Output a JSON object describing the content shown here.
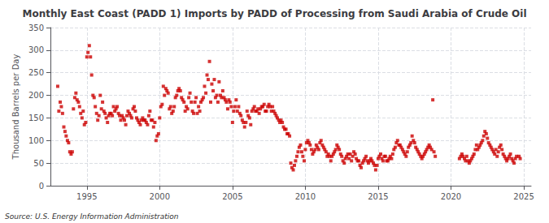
{
  "chart_data": {
    "type": "scatter",
    "title": "Monthly East Coast (PADD 1) Imports by PADD of Processing from Saudi Arabia of Crude Oil",
    "ylabel": "Thousand Barrels per Day",
    "source": "Source: U.S. Energy Information Administration",
    "color": "#cc0000",
    "marker": "square",
    "grid": true,
    "xlim": [
      1992.5,
      2025.5
    ],
    "ylim": [
      0,
      350
    ],
    "xticks": [
      1995,
      2000,
      2005,
      2010,
      2015,
      2020,
      2025
    ],
    "yticks": [
      0,
      50,
      100,
      150,
      200,
      250,
      300,
      350
    ],
    "x": [
      1993.0,
      1993.08,
      1993.17,
      1993.25,
      1993.33,
      1993.42,
      1993.5,
      1993.58,
      1993.67,
      1993.75,
      1993.83,
      1993.92,
      1994.0,
      1994.08,
      1994.17,
      1994.25,
      1994.33,
      1994.42,
      1994.5,
      1994.58,
      1994.67,
      1994.75,
      1994.83,
      1994.92,
      1995.0,
      1995.08,
      1995.17,
      1995.25,
      1995.33,
      1995.42,
      1995.5,
      1995.58,
      1995.67,
      1995.75,
      1995.83,
      1995.92,
      1996.0,
      1996.08,
      1996.17,
      1996.25,
      1996.33,
      1996.42,
      1996.5,
      1996.58,
      1996.67,
      1996.75,
      1996.83,
      1996.92,
      1997.0,
      1997.08,
      1997.17,
      1997.25,
      1997.33,
      1997.42,
      1997.5,
      1997.58,
      1997.67,
      1997.75,
      1997.83,
      1997.92,
      1998.0,
      1998.08,
      1998.17,
      1998.25,
      1998.33,
      1998.42,
      1998.5,
      1998.58,
      1998.67,
      1998.75,
      1998.83,
      1998.92,
      1999.0,
      1999.08,
      1999.17,
      1999.25,
      1999.33,
      1999.42,
      1999.5,
      1999.58,
      1999.67,
      1999.75,
      1999.83,
      1999.92,
      2000.0,
      2000.08,
      2000.17,
      2000.25,
      2000.33,
      2000.42,
      2000.5,
      2000.58,
      2000.67,
      2000.75,
      2000.83,
      2000.92,
      2001.0,
      2001.08,
      2001.17,
      2001.25,
      2001.33,
      2001.42,
      2001.5,
      2001.58,
      2001.67,
      2001.75,
      2001.83,
      2001.92,
      2002.0,
      2002.08,
      2002.17,
      2002.25,
      2002.33,
      2002.42,
      2002.5,
      2002.58,
      2002.67,
      2002.75,
      2002.83,
      2002.92,
      2003.0,
      2003.08,
      2003.17,
      2003.25,
      2003.33,
      2003.42,
      2003.5,
      2003.58,
      2003.67,
      2003.75,
      2003.83,
      2003.92,
      2004.0,
      2004.08,
      2004.17,
      2004.25,
      2004.33,
      2004.42,
      2004.5,
      2004.58,
      2004.67,
      2004.75,
      2004.83,
      2004.92,
      2005.0,
      2005.08,
      2005.17,
      2005.25,
      2005.33,
      2005.42,
      2005.5,
      2005.58,
      2005.67,
      2005.75,
      2005.83,
      2005.92,
      2006.0,
      2006.08,
      2006.17,
      2006.25,
      2006.33,
      2006.42,
      2006.5,
      2006.58,
      2006.67,
      2006.75,
      2006.83,
      2006.92,
      2007.0,
      2007.08,
      2007.17,
      2007.25,
      2007.33,
      2007.42,
      2007.5,
      2007.58,
      2007.67,
      2007.75,
      2007.83,
      2007.92,
      2008.0,
      2008.08,
      2008.17,
      2008.25,
      2008.33,
      2008.42,
      2008.5,
      2008.58,
      2008.67,
      2008.75,
      2008.83,
      2008.92,
      2009.0,
      2009.08,
      2009.17,
      2009.25,
      2009.33,
      2009.42,
      2009.5,
      2009.58,
      2009.67,
      2009.75,
      2009.83,
      2009.92,
      2010.0,
      2010.08,
      2010.17,
      2010.25,
      2010.33,
      2010.42,
      2010.5,
      2010.58,
      2010.67,
      2010.75,
      2010.83,
      2010.92,
      2011.0,
      2011.08,
      2011.17,
      2011.25,
      2011.33,
      2011.42,
      2011.5,
      2011.58,
      2011.67,
      2011.75,
      2011.83,
      2011.92,
      2012.0,
      2012.08,
      2012.17,
      2012.25,
      2012.33,
      2012.42,
      2012.5,
      2012.58,
      2012.67,
      2012.75,
      2012.83,
      2012.92,
      2013.0,
      2013.08,
      2013.17,
      2013.25,
      2013.33,
      2013.42,
      2013.5,
      2013.58,
      2013.67,
      2013.75,
      2013.83,
      2013.92,
      2014.0,
      2014.08,
      2014.17,
      2014.25,
      2014.33,
      2014.42,
      2014.5,
      2014.58,
      2014.67,
      2014.75,
      2014.83,
      2014.92,
      2015.0,
      2015.08,
      2015.17,
      2015.25,
      2015.33,
      2015.42,
      2015.5,
      2015.58,
      2015.67,
      2015.75,
      2015.83,
      2015.92,
      2016.0,
      2016.08,
      2016.17,
      2016.25,
      2016.33,
      2016.42,
      2016.5,
      2016.58,
      2016.67,
      2016.75,
      2016.83,
      2016.92,
      2017.0,
      2017.08,
      2017.17,
      2017.25,
      2017.33,
      2017.42,
      2017.5,
      2017.58,
      2017.67,
      2017.75,
      2017.83,
      2017.92,
      2018.0,
      2018.08,
      2018.17,
      2018.25,
      2018.33,
      2018.42,
      2018.5,
      2018.58,
      2018.67,
      2018.75,
      2018.83,
      2018.92,
      2020.58,
      2020.67,
      2020.75,
      2020.83,
      2020.92,
      2021.0,
      2021.08,
      2021.17,
      2021.25,
      2021.33,
      2021.42,
      2021.5,
      2021.58,
      2021.67,
      2021.75,
      2021.83,
      2021.92,
      2022.0,
      2022.08,
      2022.17,
      2022.25,
      2022.33,
      2022.42,
      2022.5,
      2022.58,
      2022.67,
      2022.75,
      2022.83,
      2022.92,
      2023.0,
      2023.08,
      2023.17,
      2023.25,
      2023.33,
      2023.42,
      2023.5,
      2023.58,
      2023.67,
      2023.75,
      2023.83,
      2023.92,
      2024.0,
      2024.08,
      2024.17,
      2024.25,
      2024.33,
      2024.42,
      2024.5,
      2024.67,
      2024.75
    ],
    "values": [
      220,
      165,
      185,
      175,
      160,
      130,
      120,
      110,
      100,
      95,
      75,
      70,
      75,
      170,
      195,
      205,
      190,
      185,
      175,
      160,
      150,
      165,
      135,
      140,
      285,
      295,
      310,
      285,
      245,
      200,
      195,
      175,
      160,
      145,
      155,
      200,
      170,
      185,
      165,
      160,
      150,
      140,
      155,
      160,
      160,
      155,
      175,
      165,
      170,
      175,
      160,
      155,
      145,
      155,
      150,
      145,
      135,
      155,
      165,
      160,
      155,
      150,
      170,
      175,
      165,
      150,
      145,
      140,
      135,
      145,
      150,
      145,
      145,
      140,
      135,
      155,
      165,
      145,
      145,
      130,
      140,
      100,
      110,
      115,
      150,
      175,
      180,
      220,
      200,
      215,
      210,
      205,
      170,
      175,
      160,
      165,
      175,
      195,
      200,
      210,
      215,
      210,
      195,
      190,
      185,
      165,
      175,
      170,
      195,
      205,
      185,
      165,
      160,
      185,
      195,
      160,
      175,
      165,
      185,
      190,
      195,
      220,
      205,
      245,
      235,
      275,
      185,
      225,
      210,
      235,
      195,
      200,
      185,
      230,
      200,
      195,
      210,
      195,
      190,
      185,
      170,
      190,
      185,
      175,
      140,
      165,
      175,
      190,
      165,
      175,
      160,
      155,
      145,
      140,
      130,
      140,
      165,
      155,
      150,
      135,
      165,
      170,
      175,
      165,
      165,
      170,
      160,
      170,
      175,
      175,
      180,
      165,
      165,
      175,
      180,
      175,
      165,
      175,
      165,
      160,
      155,
      150,
      145,
      140,
      145,
      140,
      130,
      125,
      125,
      115,
      115,
      110,
      50,
      40,
      35,
      45,
      55,
      65,
      75,
      85,
      90,
      75,
      65,
      55,
      80,
      95,
      100,
      95,
      90,
      80,
      70,
      75,
      80,
      90,
      85,
      80,
      95,
      100,
      90,
      85,
      80,
      75,
      65,
      70,
      65,
      55,
      65,
      70,
      75,
      80,
      90,
      85,
      80,
      70,
      65,
      55,
      50,
      60,
      65,
      70,
      60,
      70,
      55,
      65,
      75,
      70,
      60,
      55,
      55,
      45,
      40,
      50,
      55,
      60,
      65,
      55,
      50,
      55,
      60,
      55,
      50,
      45,
      35,
      45,
      60,
      65,
      70,
      60,
      55,
      65,
      65,
      55,
      55,
      60,
      65,
      60,
      70,
      80,
      85,
      95,
      100,
      90,
      90,
      85,
      80,
      75,
      70,
      65,
      75,
      85,
      90,
      95,
      110,
      100,
      95,
      85,
      80,
      75,
      70,
      65,
      60,
      65,
      70,
      75,
      80,
      85,
      90,
      85,
      80,
      190,
      75,
      65,
      60,
      65,
      70,
      65,
      60,
      55,
      65,
      55,
      50,
      55,
      60,
      65,
      70,
      80,
      90,
      80,
      85,
      90,
      95,
      100,
      110,
      120,
      115,
      105,
      95,
      90,
      85,
      80,
      75,
      70,
      80,
      65,
      75,
      85,
      90,
      80,
      70,
      65,
      60,
      55,
      60,
      65,
      70,
      60,
      55,
      50,
      60,
      65,
      65,
      60
    ]
  }
}
